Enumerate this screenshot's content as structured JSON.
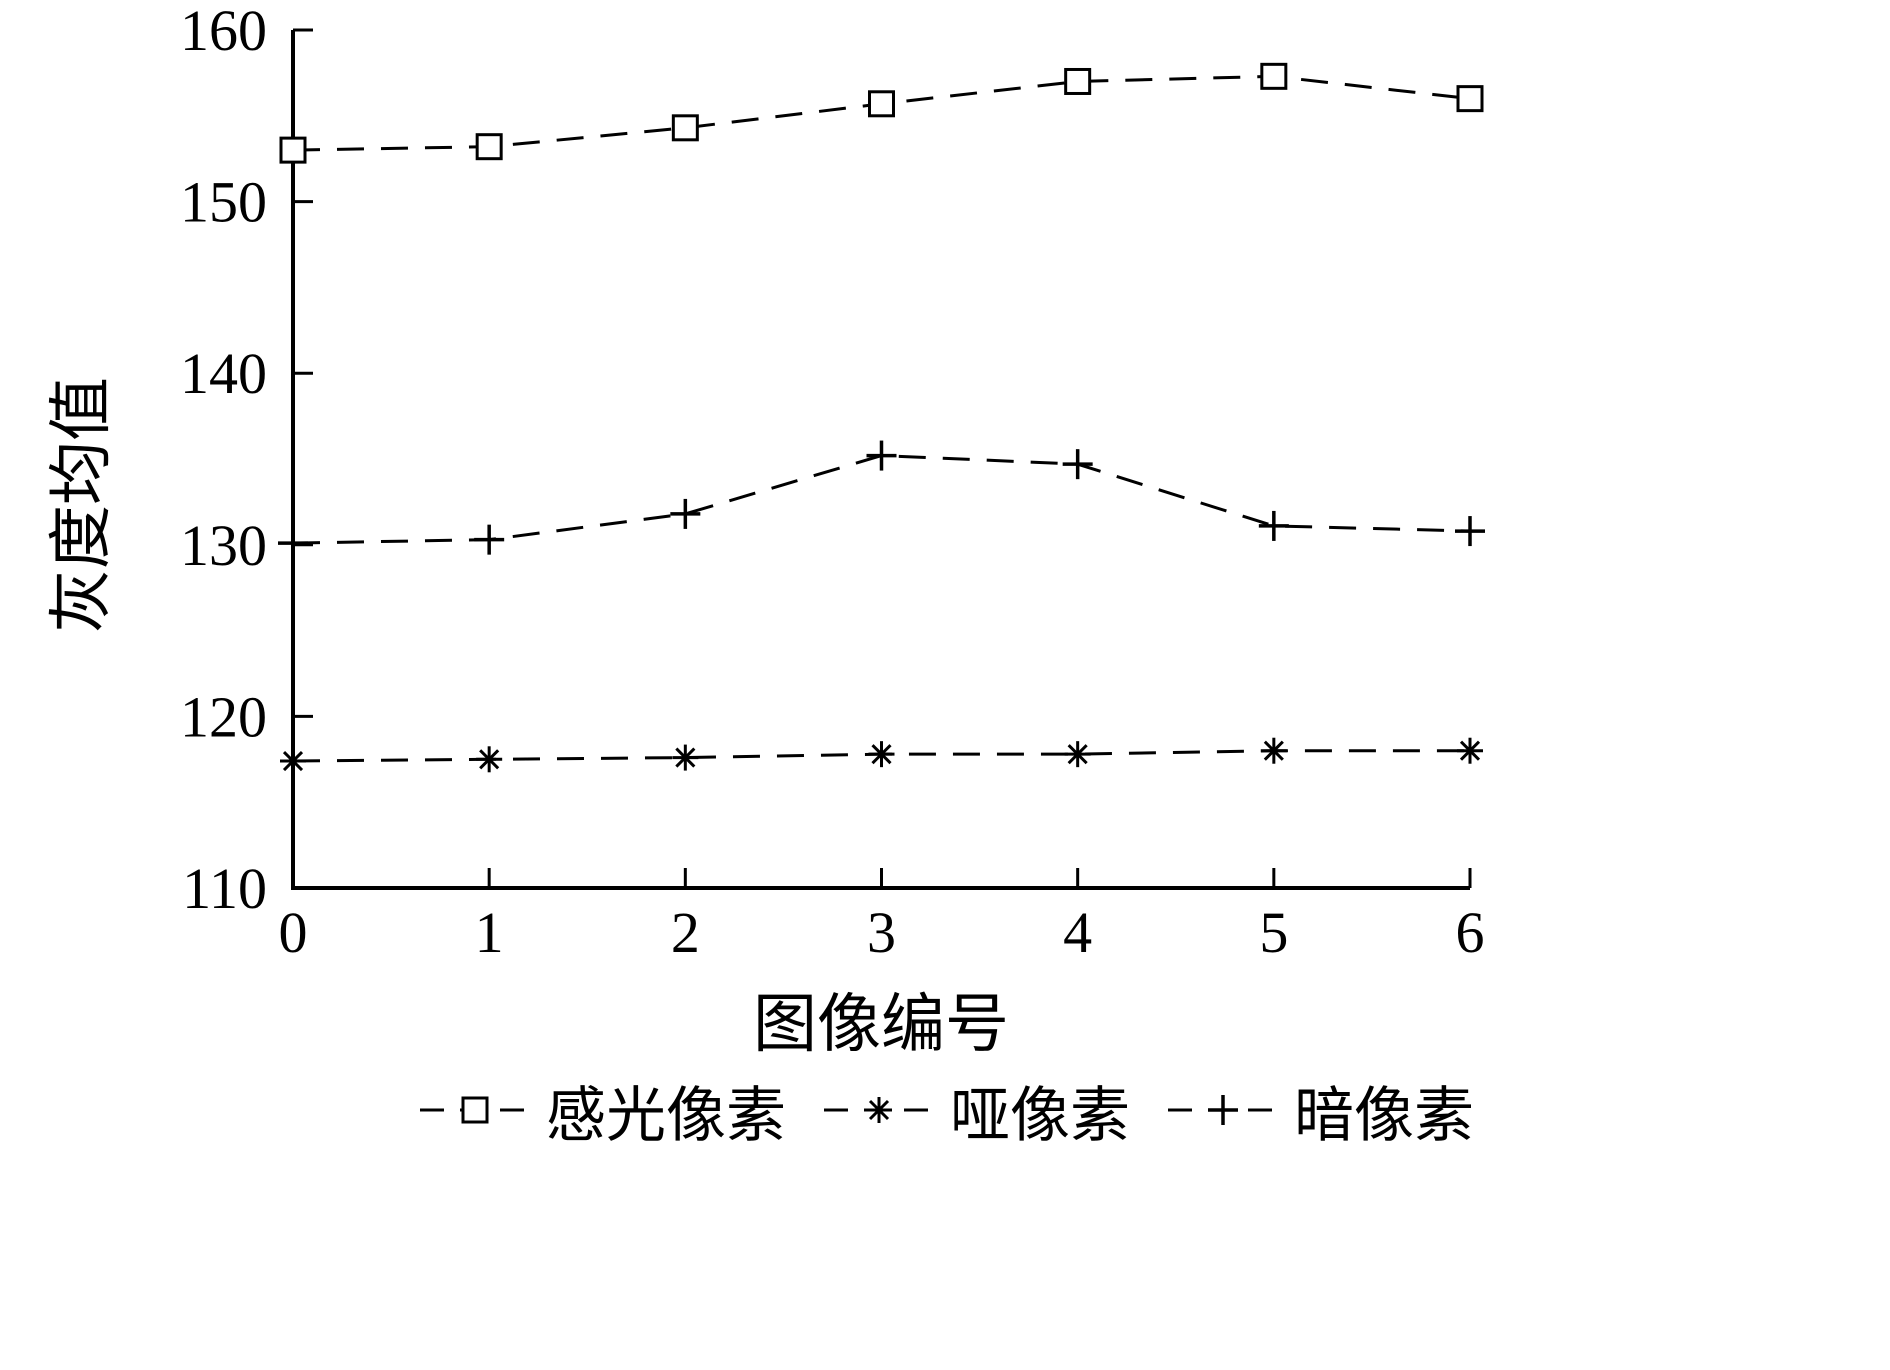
{
  "chart_data": {
    "type": "line",
    "title": "",
    "xlabel": "图像编号",
    "ylabel": "灰度均值",
    "xlim": [
      0,
      6
    ],
    "ylim": [
      110,
      160
    ],
    "xticks": [
      0,
      1,
      2,
      3,
      4,
      5,
      6
    ],
    "yticks": [
      110,
      120,
      130,
      140,
      150,
      160
    ],
    "grid": false,
    "line_style": "dashed",
    "color": "#000000",
    "background": "#ffffff",
    "legend_position": "bottom",
    "x": [
      0,
      1,
      2,
      3,
      4,
      5,
      6
    ],
    "series": [
      {
        "name": "感光像素",
        "marker": "square",
        "values": [
          153.0,
          153.2,
          154.3,
          155.7,
          157.0,
          157.3,
          156.0
        ]
      },
      {
        "name": "哑像素",
        "marker": "asterisk",
        "values": [
          117.4,
          117.5,
          117.6,
          117.8,
          117.8,
          118.0,
          118.0
        ]
      },
      {
        "name": "暗像素",
        "marker": "plus",
        "values": [
          130.1,
          130.3,
          131.8,
          135.2,
          134.7,
          131.1,
          130.8
        ]
      }
    ]
  }
}
